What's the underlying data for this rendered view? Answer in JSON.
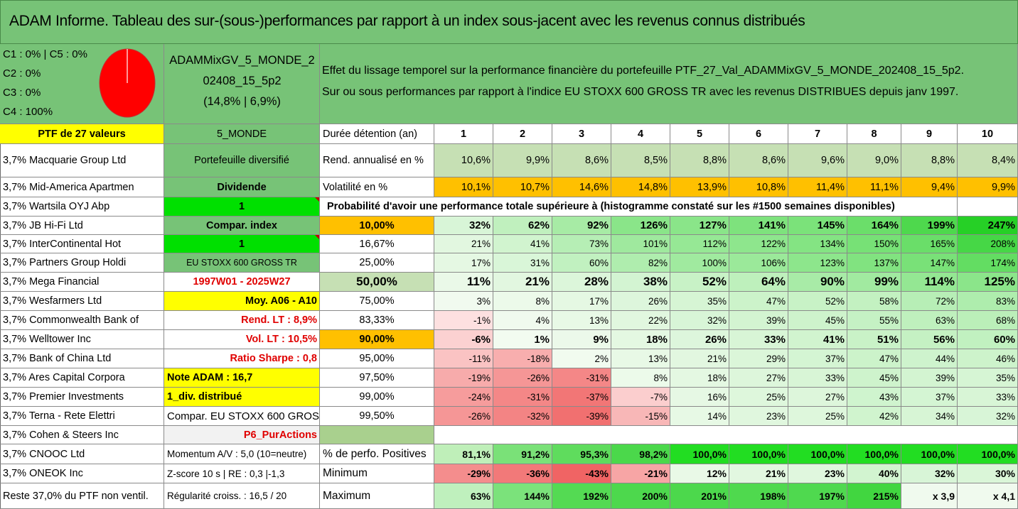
{
  "title": "ADAM Informe. Tableau des sur-(sous-)performances par rapport à un index sous-jacent avec les revenus connus distribués",
  "legend": [
    "C1 : 0% | C5 : 0%",
    "C2 : 0%",
    "C3 : 0%",
    "C4 : 100%"
  ],
  "pie": {
    "color": "#ff0000",
    "label": "C4 : 100%"
  },
  "portfolio_name": {
    "line1": "ADAMMixGV_5_MONDE_2",
    "line2": "02408_15_5p2",
    "line3": "(14,8% | 6,9%)"
  },
  "description": {
    "line1": "Effet du lissage temporel sur la performance financière du portefeuille PTF_27_Val_ADAMMixGV_5_MONDE_202408_15_5p2.",
    "line2": "Sur ou sous performances par rapport à l'indice EU STOXX 600 GROSS TR avec les revenus DISTRIBUES depuis janv 1997."
  },
  "ptf_header": "PTF de 27 valeurs",
  "holdings": [
    "3,7% Macquarie Group Ltd",
    "3,7% Mid-America Apartmen",
    "3,7% Wartsila OYJ Abp",
    "3,7% JB Hi-Fi Ltd",
    "3,7% InterContinental Hot",
    "3,7% Partners Group Holdi",
    "3,7% Mega Financial",
    "3,7% Wesfarmers Ltd",
    "3,7% Commonwealth Bank of",
    "3,7% Welltower Inc",
    "3,7% Bank of China Ltd",
    "3,7% Ares Capital Corpora",
    "3,7% Premier Investments",
    "3,7% Terna - Rete Elettri",
    "3,7% Cohen & Steers Inc",
    "3,7% CNOOC Ltd",
    "3,7% ONEOK Inc",
    "Reste 37,0% du PTF non ventil."
  ],
  "info": [
    "5_MONDE",
    "Portefeuille diversifié",
    "Dividende",
    "1",
    "Compar. index",
    "1",
    "EU STOXX 600 GROSS TR",
    "1997W01 - 2025W27",
    "Moy. A06 - A10",
    "Rend. LT : 8,9%",
    "Vol. LT : 10,5%",
    "Ratio Sharpe : 0,8",
    "Note ADAM : 16,7",
    "1_div. distribué",
    "Compar. EU STOXX 600 GROSS TR",
    "P6_PurActions",
    "Momentum A/V : 5,0 (10=neutre)",
    "Z-score 10 s | RE : 0,3 |-1,3",
    "Régularité croiss. : 16,5 / 20"
  ],
  "stats": {
    "header_label": "Durée détention (an)",
    "years": [
      "1",
      "2",
      "3",
      "4",
      "5",
      "6",
      "7",
      "8",
      "9",
      "10"
    ],
    "rend_label": "Rend. annualisé en %",
    "rend": [
      "10,6%",
      "9,9%",
      "8,6%",
      "8,5%",
      "8,8%",
      "8,6%",
      "9,6%",
      "9,0%",
      "8,8%",
      "8,4%"
    ],
    "vol_label": "Volatilité en %",
    "vol": [
      "10,1%",
      "10,7%",
      "14,6%",
      "14,8%",
      "13,9%",
      "10,8%",
      "11,4%",
      "11,1%",
      "9,4%",
      "9,9%"
    ]
  },
  "probability_header": "Probabilité d'avoir une performance totale supérieure à (histogramme constaté sur les #1500 semaines disponibles)",
  "probability_rows": [
    {
      "p": "10,00%",
      "values": [
        "32%",
        "62%",
        "92%",
        "126%",
        "127%",
        "141%",
        "145%",
        "164%",
        "199%",
        "247%"
      ]
    },
    {
      "p": "16,67%",
      "values": [
        "21%",
        "41%",
        "73%",
        "101%",
        "112%",
        "122%",
        "134%",
        "150%",
        "165%",
        "208%"
      ]
    },
    {
      "p": "25,00%",
      "values": [
        "17%",
        "31%",
        "60%",
        "82%",
        "100%",
        "106%",
        "123%",
        "137%",
        "147%",
        "174%"
      ]
    },
    {
      "p": "50,00%",
      "values": [
        "11%",
        "21%",
        "28%",
        "38%",
        "52%",
        "64%",
        "90%",
        "99%",
        "114%",
        "125%"
      ]
    },
    {
      "p": "75,00%",
      "values": [
        "3%",
        "8%",
        "17%",
        "26%",
        "35%",
        "47%",
        "52%",
        "58%",
        "72%",
        "83%"
      ]
    },
    {
      "p": "83,33%",
      "values": [
        "-1%",
        "4%",
        "13%",
        "22%",
        "32%",
        "39%",
        "45%",
        "55%",
        "63%",
        "68%"
      ]
    },
    {
      "p": "90,00%",
      "values": [
        "-6%",
        "1%",
        "9%",
        "18%",
        "26%",
        "33%",
        "41%",
        "51%",
        "56%",
        "60%"
      ]
    },
    {
      "p": "95,00%",
      "values": [
        "-11%",
        "-18%",
        "2%",
        "13%",
        "21%",
        "29%",
        "37%",
        "47%",
        "44%",
        "46%"
      ]
    },
    {
      "p": "97,50%",
      "values": [
        "-19%",
        "-26%",
        "-31%",
        "8%",
        "18%",
        "27%",
        "33%",
        "45%",
        "39%",
        "35%"
      ]
    },
    {
      "p": "99,00%",
      "values": [
        "-24%",
        "-31%",
        "-37%",
        "-7%",
        "16%",
        "25%",
        "27%",
        "43%",
        "37%",
        "33%"
      ]
    },
    {
      "p": "99,50%",
      "values": [
        "-26%",
        "-32%",
        "-39%",
        "-15%",
        "14%",
        "23%",
        "25%",
        "42%",
        "34%",
        "32%"
      ]
    }
  ],
  "summary_rows": [
    {
      "label": "% de perfo. Positives",
      "values": [
        "81,1%",
        "91,2%",
        "95,3%",
        "98,2%",
        "100,0%",
        "100,0%",
        "100,0%",
        "100,0%",
        "100,0%",
        "100,0%"
      ]
    },
    {
      "label": "Minimum",
      "values": [
        "-29%",
        "-36%",
        "-43%",
        "-21%",
        "12%",
        "21%",
        "23%",
        "40%",
        "32%",
        "30%"
      ]
    },
    {
      "label": "Maximum",
      "values": [
        "63%",
        "144%",
        "192%",
        "200%",
        "201%",
        "198%",
        "197%",
        "215%",
        "x 3,9",
        "x 4,1"
      ]
    }
  ],
  "colors": {
    "title_bg": "#77c377",
    "header_green": "#77c377",
    "yellow": "#ffff00",
    "bright_green": "#00e000",
    "orange": "#ffc000",
    "rend_green": "#c6e0b4",
    "heat_low_red": "#f08080",
    "heat_high_green": "#20d020"
  }
}
